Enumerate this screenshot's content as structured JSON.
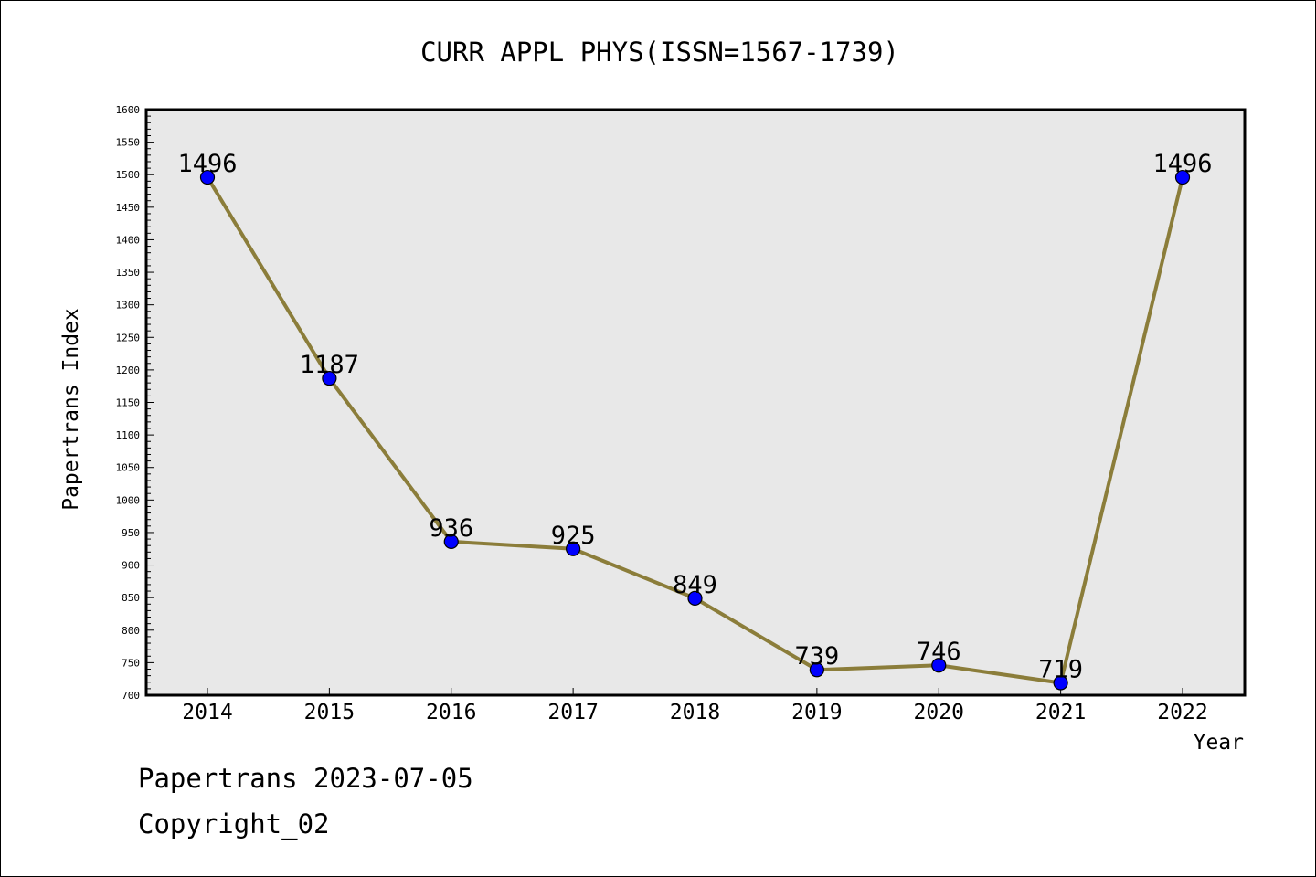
{
  "chart_data": {
    "type": "line",
    "title": "CURR APPL PHYS(ISSN=1567-1739)",
    "xlabel": "Year",
    "ylabel": "Papertrans Index",
    "categories": [
      "2014",
      "2015",
      "2016",
      "2017",
      "2018",
      "2019",
      "2020",
      "2021",
      "2022"
    ],
    "series": [
      {
        "values": [
          1496,
          1187,
          936,
          925,
          849,
          739,
          746,
          719,
          1496
        ],
        "data_labels": [
          "1496",
          "1187",
          "936",
          "925",
          "849",
          "739",
          "746",
          "719",
          "1496"
        ]
      }
    ],
    "ylim": [
      700,
      1600
    ],
    "yticks": [
      "700",
      "750",
      "800",
      "850",
      "900",
      "950",
      "1000",
      "1050",
      "1100",
      "1150",
      "1200",
      "1250",
      "1300",
      "1350",
      "1400",
      "1450",
      "1500",
      "1550",
      "1600"
    ],
    "grid": false,
    "legend": "none",
    "colors": {
      "line": "#8b7d3a",
      "marker": "#0000ff",
      "plot_background": "#e8e8e8"
    }
  },
  "footer": {
    "stamp": "Papertrans 2023-07-05",
    "copyright": "Copyright_02"
  }
}
